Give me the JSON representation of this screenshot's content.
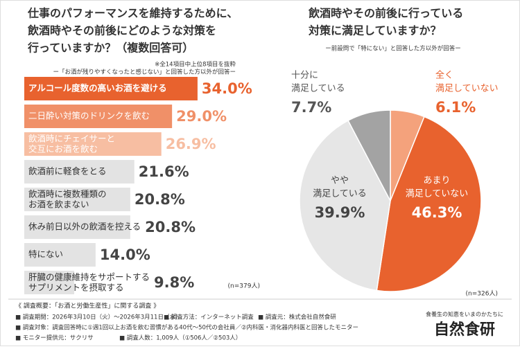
{
  "chart_data": [
    {
      "type": "bar",
      "orientation": "horizontal",
      "title": [
        "仕事のパフォーマンスを維持するために、",
        "飲酒時やその前後にどのような対策を",
        "行っていますか？（複数回答可）"
      ],
      "notes": [
        "※全14項目中上位8項目を抜粋",
        "ー「お酒が残りやすくなったと感じない」と回答した方以外が回答ー"
      ],
      "categories": [
        "アルコール度数の高いお酒を避ける",
        "二日酔い対策のドリンクを飲む",
        "飲酒時にチェイサーと\n交互にお酒を飲む",
        "飲酒前に軽食をとる",
        "飲酒時に複数種類の\nお酒を飲まない",
        "休み前日以外の飲酒を控える",
        "特にない",
        "肝臓の健康維持をサポートする\nサプリメントを摂取する"
      ],
      "values": [
        34.0,
        29.0,
        26.9,
        21.6,
        20.8,
        20.8,
        14.0,
        9.8
      ],
      "value_labels": [
        "34.0%",
        "29.0%",
        "26.9%",
        "21.6%",
        "20.8%",
        "20.8%",
        "14.0%",
        "9.8%"
      ],
      "colors": [
        "#e8622e",
        "#f09068",
        "#f7bea2",
        "#e3e3e3",
        "#e3e3e3",
        "#e3e3e3",
        "#e3e3e3",
        "#e3e3e3"
      ],
      "sample": "(n=379人)"
    },
    {
      "type": "pie",
      "title": [
        "飲酒時やその前後に行っている",
        "対策に満足していますか？"
      ],
      "notes": [
        "ー前設問で「特にない」と回答した方以外が回答ー"
      ],
      "categories": [
        "全く\n満足していない",
        "あまり\n満足していない",
        "やや\n満足している",
        "十分に\n満足している"
      ],
      "values": [
        6.1,
        46.3,
        39.9,
        7.7
      ],
      "value_labels": [
        "6.1%",
        "46.3%",
        "39.9%",
        "7.7%"
      ],
      "colors": [
        "#f4a27c",
        "#e8622e",
        "#e6e6e6",
        "#a3a3a3"
      ],
      "sample": "(n=326人)"
    }
  ],
  "footer": {
    "heading": "《 調査概要：「お酒と労働生産性」に関する調査 》",
    "lines": [
      [
        "■ 調査期間：2026年3月10日（火）〜2026年3月11日（水）",
        "■ 調査方法：インターネット調査",
        "■ 調査元：株式会社自然食研"
      ],
      [
        "■ 調査対象：調査回答時に①週1回以上お酒を飲む習慣がある40代〜50代の会社員／②内科医・消化器内科医と回答したモニター"
      ],
      [
        "■ モニター提供元：サクリサ",
        "■ 調査人数：1,009人（①506人／②503人）"
      ]
    ]
  },
  "logo": {
    "tagline": "食養生の知恵をいまのかたちに",
    "name": "自然食研"
  }
}
